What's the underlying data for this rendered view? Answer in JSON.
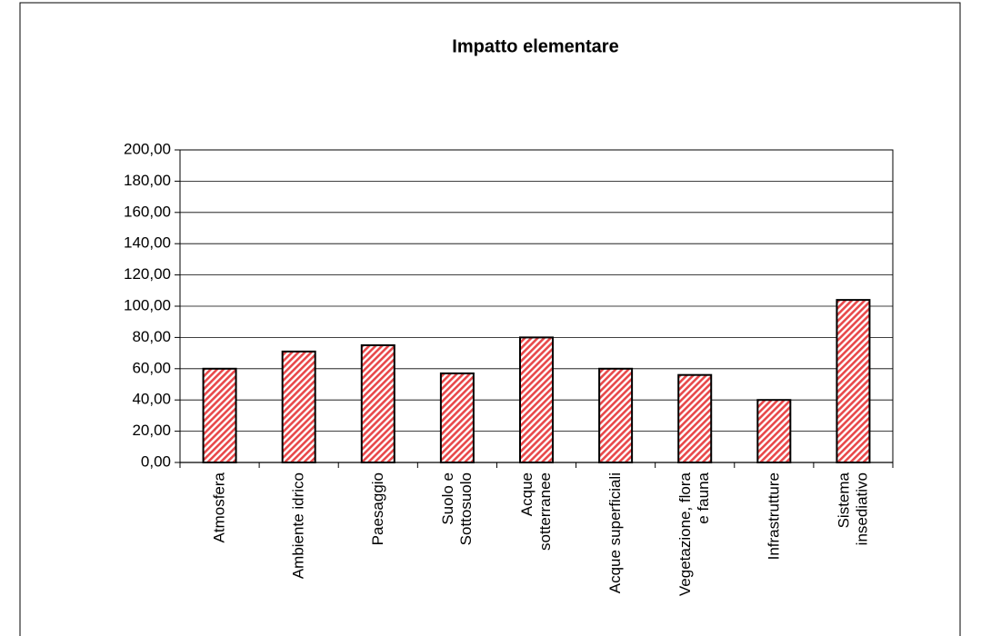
{
  "chart_data": {
    "type": "bar",
    "title": "Impatto elementare",
    "categories": [
      "Atmosfera",
      "Ambiente idrico",
      "Paesaggio",
      "Suolo e\nSottosuolo",
      "Acque\nsotterranee",
      "Acque superficiali",
      "Vegetazione, flora\ne fauna",
      "Infrastrutture",
      "Sistema\ninsediativo"
    ],
    "values": [
      60,
      71,
      75,
      57,
      80,
      60,
      56,
      40,
      104
    ],
    "color": "#e8484a",
    "ylim": [
      0,
      200
    ],
    "yticks": [
      {
        "value": 0,
        "label": "0,00"
      },
      {
        "value": 20,
        "label": "20,00"
      },
      {
        "value": 40,
        "label": "40,00"
      },
      {
        "value": 60,
        "label": "60,00"
      },
      {
        "value": 80,
        "label": "80,00"
      },
      {
        "value": 100,
        "label": "100,00"
      },
      {
        "value": 120,
        "label": "120,00"
      },
      {
        "value": 140,
        "label": "140,00"
      },
      {
        "value": 160,
        "label": "160,00"
      },
      {
        "value": 180,
        "label": "180,00"
      },
      {
        "value": 200,
        "label": "200,00"
      }
    ],
    "grid": true
  }
}
